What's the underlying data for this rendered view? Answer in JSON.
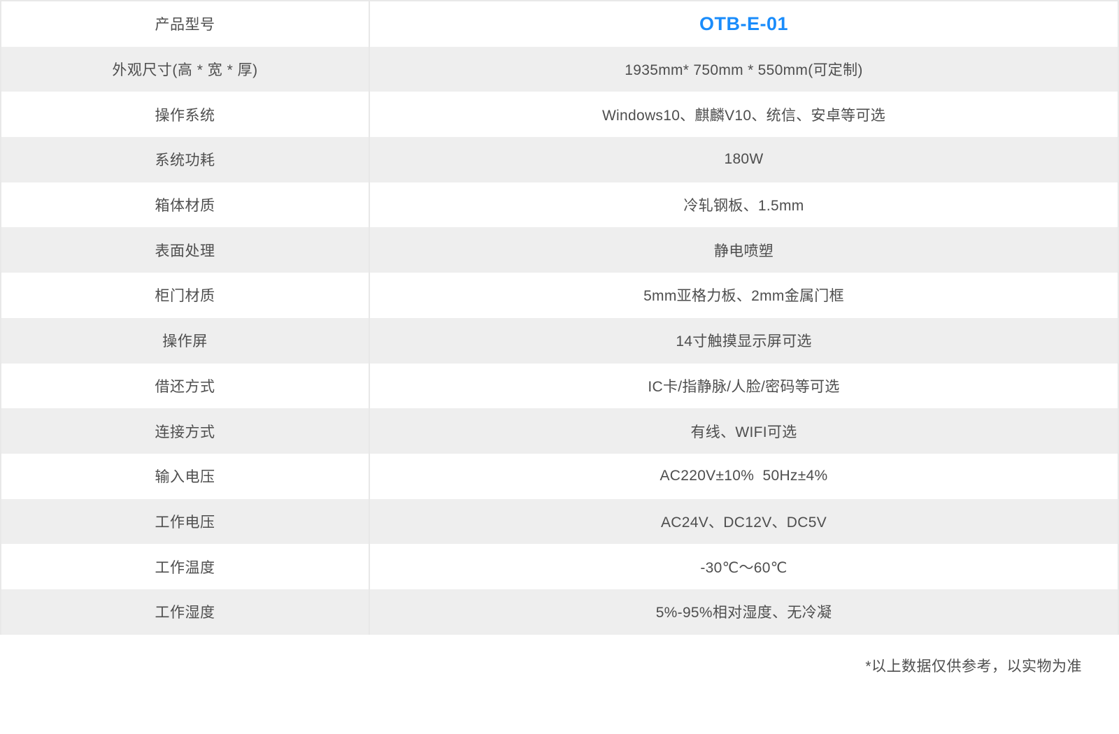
{
  "table": {
    "rows": [
      {
        "label": "产品型号",
        "value": "OTB-E-01",
        "highlight": true
      },
      {
        "label": "外观尺寸(高 * 宽 * 厚)",
        "value": "1935mm* 750mm * 550mm(可定制)",
        "highlight": false
      },
      {
        "label": "操作系统",
        "value": "Windows10、麒麟V10、统信、安卓等可选",
        "highlight": false
      },
      {
        "label": "系统功耗",
        "value": "180W",
        "highlight": false
      },
      {
        "label": "箱体材质",
        "value": "冷轧钢板、1.5mm",
        "highlight": false
      },
      {
        "label": "表面处理",
        "value": "静电喷塑",
        "highlight": false
      },
      {
        "label": "柜门材质",
        "value": "5mm亚格力板、2mm金属门框",
        "highlight": false
      },
      {
        "label": "操作屏",
        "value": "14寸触摸显示屏可选",
        "highlight": false
      },
      {
        "label": "借还方式",
        "value": "IC卡/指静脉/人脸/密码等可选",
        "highlight": false
      },
      {
        "label": "连接方式",
        "value": "有线、WIFI可选",
        "highlight": false
      },
      {
        "label": "输入电压",
        "value": "AC220V±10%  50Hz±4%",
        "highlight": false
      },
      {
        "label": "工作电压",
        "value": "AC24V、DC12V、DC5V",
        "highlight": false
      },
      {
        "label": "工作温度",
        "value": "-30℃～60℃",
        "highlight": false
      },
      {
        "label": "工作湿度",
        "value": "5%-95%相对湿度、无冷凝",
        "highlight": false
      }
    ]
  },
  "footnote": "*以上数据仅供参考，以实物为准",
  "colors": {
    "accent_blue": "#1A8CFB",
    "row_alt_gray": "#EEEEEE",
    "border_gray": "#E8E8E8",
    "text_gray": "#4E4E4E"
  }
}
